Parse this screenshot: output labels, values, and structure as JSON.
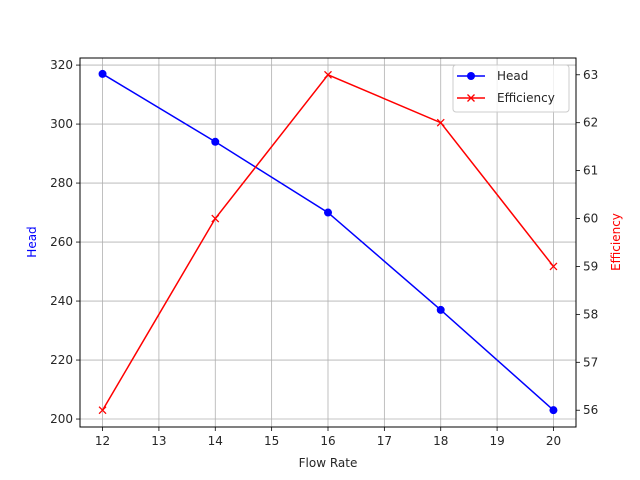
{
  "chart_data": {
    "type": "line",
    "title": "",
    "xlabel": "Flow Rate",
    "ylabel": "Head",
    "y2label": "Efficiency",
    "x": [
      12,
      14,
      16,
      18,
      20
    ],
    "xticks": [
      12,
      13,
      14,
      15,
      16,
      17,
      18,
      19,
      20
    ],
    "yticks": [
      200,
      220,
      240,
      260,
      280,
      300,
      320
    ],
    "y2ticks": [
      56,
      57,
      58,
      59,
      60,
      61,
      62,
      63
    ],
    "xlim": [
      11.6,
      20.4
    ],
    "ylim": [
      197.3,
      322.4
    ],
    "y2lim": [
      55.65,
      63.35
    ],
    "grid": true,
    "legend_position": "upper right",
    "series": [
      {
        "name": "Head",
        "axis": "left",
        "color": "#0000ff",
        "marker": "circle",
        "values": [
          317,
          294,
          270,
          237,
          203
        ]
      },
      {
        "name": "Efficiency",
        "axis": "right",
        "color": "#ff0000",
        "marker": "x",
        "values": [
          56,
          60,
          63,
          62,
          59
        ]
      }
    ]
  },
  "colors": {
    "head": "#0000ff",
    "efficiency": "#ff0000",
    "grid": "#b0b0b0",
    "axis": "#000000",
    "text": "#262626"
  }
}
